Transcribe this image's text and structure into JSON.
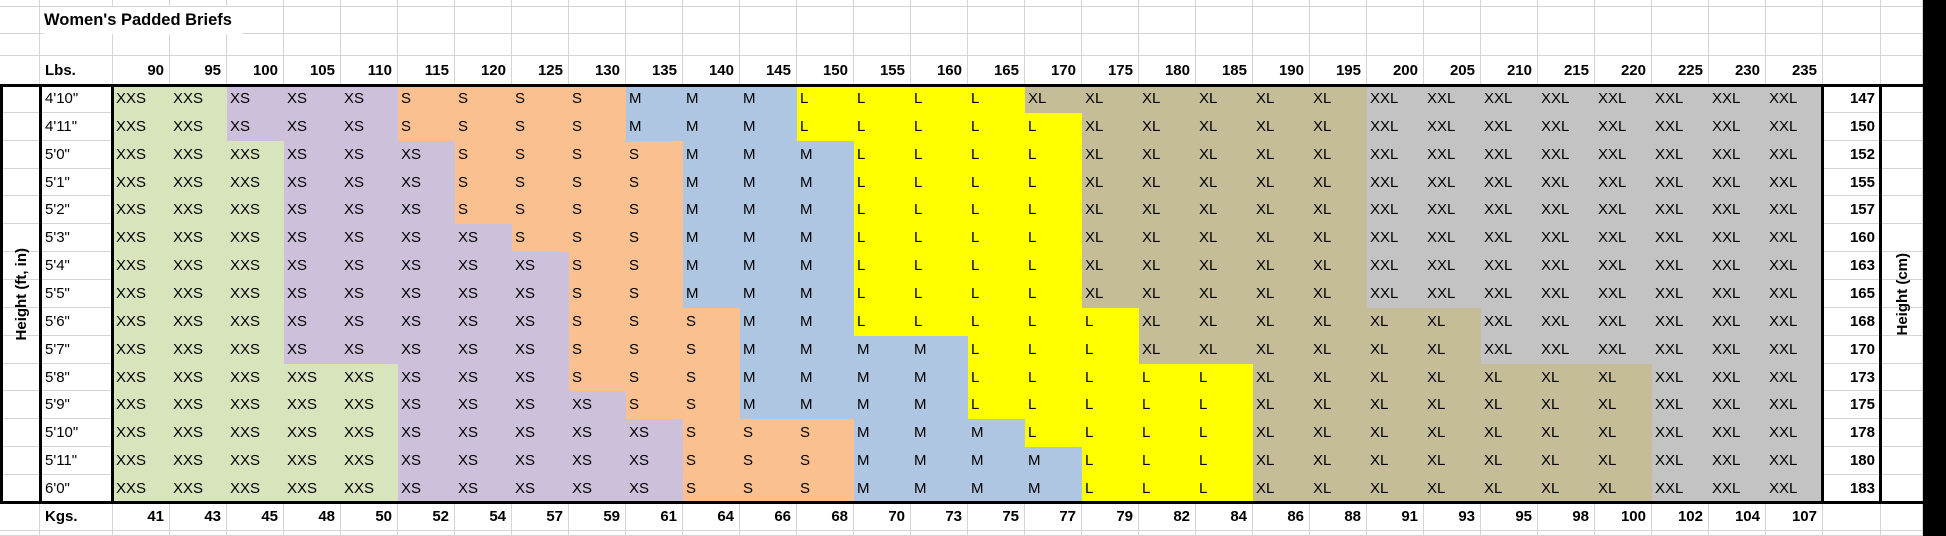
{
  "title": "Women's Padded Briefs",
  "left_axis_label": "Height (ft, in)",
  "right_axis_label": "Height (cm)",
  "weight_header_label": "Lbs.",
  "weight_footer_label": "Kgs.",
  "weights_lbs": [
    90,
    95,
    100,
    105,
    110,
    115,
    120,
    125,
    130,
    135,
    140,
    145,
    150,
    155,
    160,
    165,
    170,
    175,
    180,
    185,
    190,
    195,
    200,
    205,
    210,
    215,
    220,
    225,
    230,
    235
  ],
  "weights_kgs": [
    41,
    43,
    45,
    48,
    50,
    52,
    54,
    57,
    59,
    61,
    64,
    66,
    68,
    70,
    73,
    75,
    77,
    79,
    82,
    84,
    86,
    88,
    91,
    93,
    95,
    98,
    100,
    102,
    104,
    107
  ],
  "size_colors": {
    "XXS": "#D7E4BC",
    "XS": "#CCC0DA",
    "S": "#FAC08F",
    "M": "#AEC6E2",
    "L": "#FFFF00",
    "XL": "#C4BD97",
    "XXL": "#C3C3C3"
  },
  "rows": [
    {
      "height_ft_in": "4'10\"",
      "height_cm": 147,
      "sizes": [
        "XXS",
        "XXS",
        "XS",
        "XS",
        "XS",
        "S",
        "S",
        "S",
        "S",
        "M",
        "M",
        "M",
        "L",
        "L",
        "L",
        "L",
        "XL",
        "XL",
        "XL",
        "XL",
        "XL",
        "XL",
        "XXL",
        "XXL",
        "XXL",
        "XXL",
        "XXL",
        "XXL",
        "XXL",
        "XXL"
      ]
    },
    {
      "height_ft_in": "4'11\"",
      "height_cm": 150,
      "sizes": [
        "XXS",
        "XXS",
        "XS",
        "XS",
        "XS",
        "S",
        "S",
        "S",
        "S",
        "M",
        "M",
        "M",
        "L",
        "L",
        "L",
        "L",
        "L",
        "XL",
        "XL",
        "XL",
        "XL",
        "XL",
        "XXL",
        "XXL",
        "XXL",
        "XXL",
        "XXL",
        "XXL",
        "XXL",
        "XXL"
      ]
    },
    {
      "height_ft_in": "5'0\"",
      "height_cm": 152,
      "sizes": [
        "XXS",
        "XXS",
        "XXS",
        "XS",
        "XS",
        "XS",
        "S",
        "S",
        "S",
        "S",
        "M",
        "M",
        "M",
        "L",
        "L",
        "L",
        "L",
        "XL",
        "XL",
        "XL",
        "XL",
        "XL",
        "XXL",
        "XXL",
        "XXL",
        "XXL",
        "XXL",
        "XXL",
        "XXL",
        "XXL"
      ]
    },
    {
      "height_ft_in": "5'1\"",
      "height_cm": 155,
      "sizes": [
        "XXS",
        "XXS",
        "XXS",
        "XS",
        "XS",
        "XS",
        "S",
        "S",
        "S",
        "S",
        "M",
        "M",
        "M",
        "L",
        "L",
        "L",
        "L",
        "XL",
        "XL",
        "XL",
        "XL",
        "XL",
        "XXL",
        "XXL",
        "XXL",
        "XXL",
        "XXL",
        "XXL",
        "XXL",
        "XXL"
      ]
    },
    {
      "height_ft_in": "5'2\"",
      "height_cm": 157,
      "sizes": [
        "XXS",
        "XXS",
        "XXS",
        "XS",
        "XS",
        "XS",
        "S",
        "S",
        "S",
        "S",
        "M",
        "M",
        "M",
        "L",
        "L",
        "L",
        "L",
        "XL",
        "XL",
        "XL",
        "XL",
        "XL",
        "XXL",
        "XXL",
        "XXL",
        "XXL",
        "XXL",
        "XXL",
        "XXL",
        "XXL"
      ]
    },
    {
      "height_ft_in": "5'3\"",
      "height_cm": 160,
      "sizes": [
        "XXS",
        "XXS",
        "XXS",
        "XS",
        "XS",
        "XS",
        "XS",
        "S",
        "S",
        "S",
        "M",
        "M",
        "M",
        "L",
        "L",
        "L",
        "L",
        "XL",
        "XL",
        "XL",
        "XL",
        "XL",
        "XXL",
        "XXL",
        "XXL",
        "XXL",
        "XXL",
        "XXL",
        "XXL",
        "XXL"
      ]
    },
    {
      "height_ft_in": "5'4\"",
      "height_cm": 163,
      "sizes": [
        "XXS",
        "XXS",
        "XXS",
        "XS",
        "XS",
        "XS",
        "XS",
        "XS",
        "S",
        "S",
        "M",
        "M",
        "M",
        "L",
        "L",
        "L",
        "L",
        "XL",
        "XL",
        "XL",
        "XL",
        "XL",
        "XXL",
        "XXL",
        "XXL",
        "XXL",
        "XXL",
        "XXL",
        "XXL",
        "XXL"
      ]
    },
    {
      "height_ft_in": "5'5\"",
      "height_cm": 165,
      "sizes": [
        "XXS",
        "XXS",
        "XXS",
        "XS",
        "XS",
        "XS",
        "XS",
        "XS",
        "S",
        "S",
        "M",
        "M",
        "M",
        "L",
        "L",
        "L",
        "L",
        "XL",
        "XL",
        "XL",
        "XL",
        "XL",
        "XXL",
        "XXL",
        "XXL",
        "XXL",
        "XXL",
        "XXL",
        "XXL",
        "XXL"
      ]
    },
    {
      "height_ft_in": "5'6\"",
      "height_cm": 168,
      "sizes": [
        "XXS",
        "XXS",
        "XXS",
        "XS",
        "XS",
        "XS",
        "XS",
        "XS",
        "S",
        "S",
        "S",
        "M",
        "M",
        "L",
        "L",
        "L",
        "L",
        "L",
        "XL",
        "XL",
        "XL",
        "XL",
        "XL",
        "XL",
        "XXL",
        "XXL",
        "XXL",
        "XXL",
        "XXL",
        "XXL"
      ]
    },
    {
      "height_ft_in": "5'7\"",
      "height_cm": 170,
      "sizes": [
        "XXS",
        "XXS",
        "XXS",
        "XS",
        "XS",
        "XS",
        "XS",
        "XS",
        "S",
        "S",
        "S",
        "M",
        "M",
        "M",
        "M",
        "L",
        "L",
        "L",
        "XL",
        "XL",
        "XL",
        "XL",
        "XL",
        "XL",
        "XXL",
        "XXL",
        "XXL",
        "XXL",
        "XXL",
        "XXL"
      ]
    },
    {
      "height_ft_in": "5'8\"",
      "height_cm": 173,
      "sizes": [
        "XXS",
        "XXS",
        "XXS",
        "XXS",
        "XXS",
        "XS",
        "XS",
        "XS",
        "S",
        "S",
        "S",
        "M",
        "M",
        "M",
        "M",
        "L",
        "L",
        "L",
        "L",
        "L",
        "XL",
        "XL",
        "XL",
        "XL",
        "XL",
        "XL",
        "XL",
        "XXL",
        "XXL",
        "XXL"
      ]
    },
    {
      "height_ft_in": "5'9\"",
      "height_cm": 175,
      "sizes": [
        "XXS",
        "XXS",
        "XXS",
        "XXS",
        "XXS",
        "XS",
        "XS",
        "XS",
        "XS",
        "S",
        "S",
        "M",
        "M",
        "M",
        "M",
        "L",
        "L",
        "L",
        "L",
        "L",
        "XL",
        "XL",
        "XL",
        "XL",
        "XL",
        "XL",
        "XL",
        "XXL",
        "XXL",
        "XXL"
      ]
    },
    {
      "height_ft_in": "5'10\"",
      "height_cm": 178,
      "sizes": [
        "XXS",
        "XXS",
        "XXS",
        "XXS",
        "XXS",
        "XS",
        "XS",
        "XS",
        "XS",
        "XS",
        "S",
        "S",
        "S",
        "M",
        "M",
        "M",
        "L",
        "L",
        "L",
        "L",
        "XL",
        "XL",
        "XL",
        "XL",
        "XL",
        "XL",
        "XL",
        "XXL",
        "XXL",
        "XXL"
      ]
    },
    {
      "height_ft_in": "5'11\"",
      "height_cm": 180,
      "sizes": [
        "XXS",
        "XXS",
        "XXS",
        "XXS",
        "XXS",
        "XS",
        "XS",
        "XS",
        "XS",
        "XS",
        "S",
        "S",
        "S",
        "M",
        "M",
        "M",
        "M",
        "L",
        "L",
        "L",
        "XL",
        "XL",
        "XL",
        "XL",
        "XL",
        "XL",
        "XL",
        "XXL",
        "XXL",
        "XXL"
      ]
    },
    {
      "height_ft_in": "6'0\"",
      "height_cm": 183,
      "sizes": [
        "XXS",
        "XXS",
        "XXS",
        "XXS",
        "XXS",
        "XS",
        "XS",
        "XS",
        "XS",
        "XS",
        "S",
        "S",
        "S",
        "M",
        "M",
        "M",
        "M",
        "L",
        "L",
        "L",
        "XL",
        "XL",
        "XL",
        "XL",
        "XL",
        "XL",
        "XL",
        "XXL",
        "XXL",
        "XXL"
      ]
    }
  ]
}
